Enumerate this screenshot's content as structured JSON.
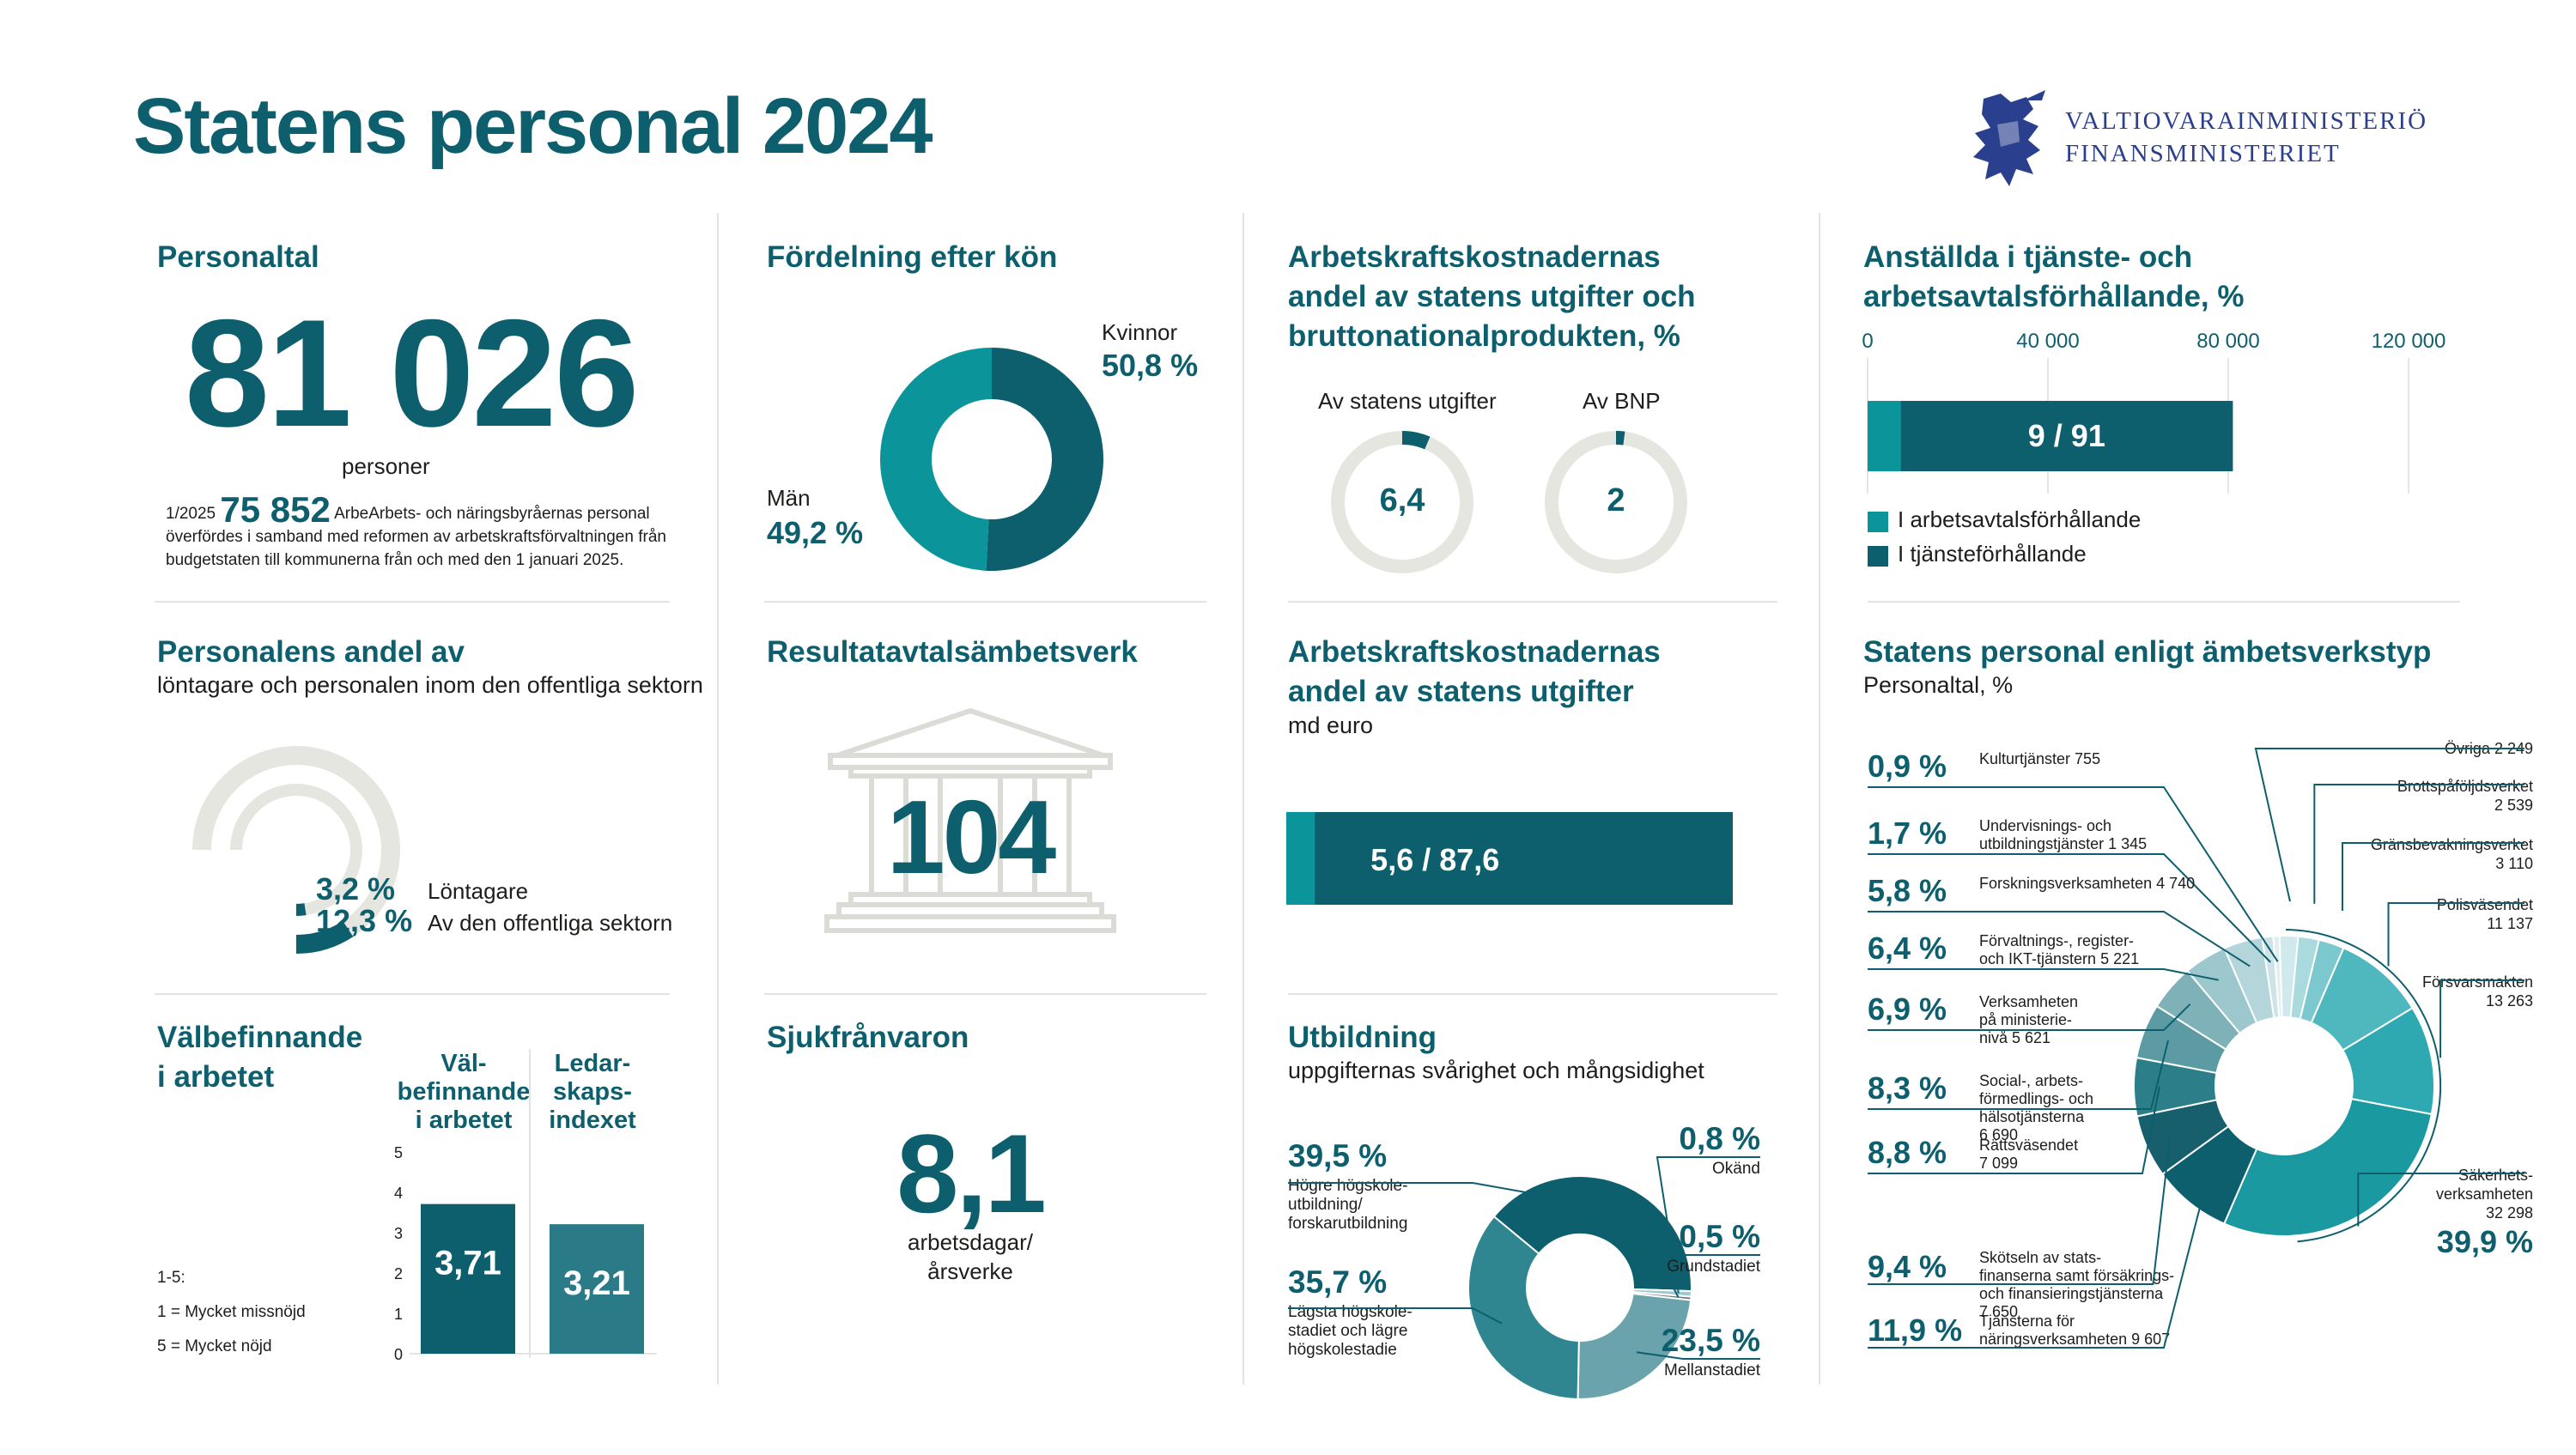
{
  "title": "Statens personal 2024",
  "logo": {
    "line1": "VALTIOVARAINMINISTERIÖ",
    "line2": "FINANSMINISTERIET",
    "icon": "lion-crest-icon"
  },
  "personaltal": {
    "title": "Personaltal",
    "value": "81 026",
    "unit": "personer",
    "note_prefix": "1/2025",
    "note_value": "75 852",
    "note_line1": "ArbeArbets- och näringsbyråernas personal",
    "note_line2": "överfördes i samband med reformen av arbetskraftsförvaltningen från",
    "note_line3": "budgetstaten till kommunerna från och med den 1 januari 2025."
  },
  "kon": {
    "title": "Fördelning efter kön",
    "women_label": "Kvinnor",
    "women_pct": "50,8 %",
    "men_label": "Män",
    "men_pct": "49,2 %"
  },
  "kostnader_andel": {
    "title_line1": "Arbetskraftskostnadernas",
    "title_line2": "andel av statens utgifter och",
    "title_line3": "bruttonationalprodukten, %",
    "label_a": "Av statens utgifter",
    "value_a": "6,4",
    "label_b": "Av BNP",
    "value_b": "2"
  },
  "anstallda": {
    "title_line1": "Anställda i tjänste- och",
    "title_line2": "arbetsavtalsförhållande, %",
    "ticks": [
      "0",
      "40 000",
      "80 000",
      "120 000"
    ],
    "bar_label": "9 / 91",
    "legend_a": "I arbetsavtalsförhållande",
    "legend_b": "I tjänsteförhållande"
  },
  "andel_av": {
    "title": "Personalens andel av",
    "subtitle": "löntagare och personalen inom den offentliga sektorn",
    "pct_a": "3,2 %",
    "label_a": "Löntagare",
    "pct_b": "12,3 %",
    "label_b": "Av den offentliga sektorn"
  },
  "resultat": {
    "title": "Resultatavtalsämbetsverk",
    "value": "104"
  },
  "kostnader_md": {
    "title_line1": "Arbetskraftskostnadernas",
    "title_line2": "andel av statens utgifter",
    "subtitle": "md euro",
    "bar_label": "5,6 / 87,6"
  },
  "ambetsverkstyp": {
    "title": "Statens personal enligt ämbetsverkstyp",
    "subtitle": "Personaltal, %"
  },
  "valbefinnande": {
    "title_line1": "Välbefinnande",
    "title_line2": "i arbetet",
    "col_a_line1": "Väl-",
    "col_a_line2": "befinnande",
    "col_a_line3": "i arbetet",
    "col_b_line1": "Ledar-",
    "col_b_line2": "skaps-",
    "col_b_line3": "indexet",
    "scale_title": "1-5:",
    "scale_1": "1 = Mycket missnöjd",
    "scale_5": "5 = Mycket nöjd"
  },
  "sjuk": {
    "title": "Sjukfrånvaron",
    "value": "8,1",
    "unit_line1": "arbetsdagar/",
    "unit_line2": "årsverke"
  },
  "utbildning": {
    "title": "Utbildning",
    "subtitle": "uppgifternas svårighet och mångsidighet"
  },
  "colors": {
    "dark": "#0e5f6e",
    "mid": "#0b959a",
    "light": "#e6e6e1",
    "accent": "#1a9aa0"
  },
  "chart_data": [
    {
      "type": "pie",
      "id": "kon",
      "categories": [
        "Kvinnor",
        "Män"
      ],
      "values": [
        50.8,
        49.2
      ],
      "colors": [
        "#0e5f6e",
        "#0b959a"
      ]
    },
    {
      "type": "pie",
      "id": "kostnader_andel",
      "categories": [
        "Av statens utgifter",
        "Av BNP"
      ],
      "values": [
        6.4,
        2
      ]
    },
    {
      "type": "bar",
      "id": "anstallda",
      "categories": [
        "I arbetsavtalsförhållande",
        "I tjänsteförhållande"
      ],
      "values": [
        9,
        91
      ],
      "total": 81026,
      "xlim": [
        0,
        120000
      ]
    },
    {
      "type": "pie",
      "id": "andel_av",
      "categories": [
        "Löntagare",
        "Av den offentliga sektorn"
      ],
      "values": [
        3.2,
        12.3
      ]
    },
    {
      "type": "bar",
      "id": "kostnader_md",
      "categories": [
        "Arbetskraftskostnader",
        "Statens utgifter"
      ],
      "values": [
        5.6,
        87.6
      ]
    },
    {
      "type": "bar",
      "id": "valbefinnande",
      "categories": [
        "Välbefinnande i arbetet",
        "Ledarskapsindexet"
      ],
      "values": [
        3.71,
        3.21
      ],
      "labels": [
        "3,71",
        "3,21"
      ],
      "ylim": [
        0,
        5
      ],
      "yticks": [
        "0",
        "1",
        "2",
        "3",
        "4",
        "5"
      ]
    },
    {
      "type": "pie",
      "id": "utbildning",
      "categories": [
        "Högre högskole-utbildning/forskarutbildning",
        "Okänd",
        "Grundstadiet",
        "Mellanstadiet",
        "Lägsta högskole-stadiet och lägre högskolestadie"
      ],
      "values": [
        39.5,
        0.8,
        0.5,
        23.5,
        35.7
      ],
      "pct_labels": [
        "39,5 %",
        "0,8 %",
        "0,5 %",
        "23,5 %",
        "35,7 %"
      ],
      "label_lines": [
        [
          "Högre högskole-",
          "utbildning/",
          "forskarutbildning"
        ],
        [
          "Okänd"
        ],
        [
          "Grundstadiet"
        ],
        [
          "Mellanstadiet"
        ],
        [
          "Lägsta högskole-",
          "stadiet och lägre",
          "högskolestadie"
        ]
      ]
    },
    {
      "type": "pie",
      "id": "ambetsverkstyp",
      "categories": [
        "Övriga",
        "Brottspåföljdsverket",
        "Gränsbevakningsverket",
        "Polisväsendet",
        "Försvarsmakten",
        "Säkerhets-verksamheten",
        "Tjänsterna för näringsverksamheten",
        "Skötseln av statsfinanserna samt försäkrings- och finansieringstjänsterna",
        "Rättsväsendet",
        "Social-, arbetsförmedlings- och hälsotjänsterna",
        "Verksamheten på ministerienivå",
        "Förvaltnings-, register- och IKT-tjänstern",
        "Forskningsverksamheten",
        "Undervisnings- och utbildningstjänster",
        "Kulturtjänster"
      ],
      "values": [
        2249,
        2539,
        3110,
        11137,
        13263,
        32298,
        9607,
        7650,
        7099,
        6690,
        5621,
        5221,
        4740,
        1345,
        755
      ],
      "right_labels": [
        {
          "lines": [
            "Övriga 2 249"
          ]
        },
        {
          "lines": [
            "Brottspåföljdsverket",
            "2 539"
          ]
        },
        {
          "lines": [
            "Gränsbevakningsverket",
            "3 110"
          ]
        },
        {
          "lines": [
            "Polisväsendet",
            "11 137"
          ]
        },
        {
          "lines": [
            "Försvarsmakten",
            "13 263"
          ]
        },
        {
          "lines": [
            "Säkerhets-",
            "verksamheten",
            "32 298"
          ],
          "pct": "39,9 %"
        }
      ],
      "left_labels": [
        {
          "pct": "0,9 %",
          "lines": [
            "Kulturtjänster 755"
          ]
        },
        {
          "pct": "1,7 %",
          "lines": [
            "Undervisnings- och",
            "utbildningstjänster  1 345"
          ]
        },
        {
          "pct": "5,8 %",
          "lines": [
            "Forskningsverksamheten 4 740"
          ]
        },
        {
          "pct": "6,4 %",
          "lines": [
            "Förvaltnings-, register-",
            "och IKT-tjänstern 5 221"
          ]
        },
        {
          "pct": "6,9 %",
          "lines": [
            "Verksamheten",
            "på ministerie-",
            "nivå  5 621"
          ]
        },
        {
          "pct": "8,3 %",
          "lines": [
            "Social-, arbets-",
            "förmedlings- och",
            "hälsotjänsterna",
            "6 690"
          ]
        },
        {
          "pct": "8,8 %",
          "lines": [
            "Rättsväsendet",
            "7 099"
          ]
        },
        {
          "pct": "9,4 %",
          "lines": [
            "Skötseln av stats-",
            "finanserna samt försäkrings-",
            "och finansieringstjänsterna",
            "7 650"
          ]
        },
        {
          "pct": "11,9 %",
          "lines": [
            "Tjänsterna för",
            "näringsverksamheten  9 607"
          ]
        }
      ]
    }
  ]
}
